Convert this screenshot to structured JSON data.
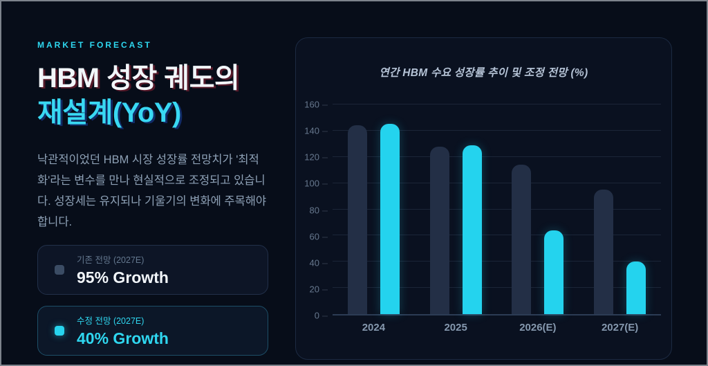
{
  "header": {
    "eyebrow": "MARKET FORECAST",
    "title_line1": "HBM 성장 궤도의",
    "title_line2": "재설계(YoY)",
    "description": "낙관적이었던 HBM 시장 성장률 전망치가 '최적화'라는 변수를 만나 현실적으로 조정되고 있습니다. 성장세는 유지되나 기울기의 변화에 주목해야 합니다."
  },
  "cards": [
    {
      "label": "기존 전망 (2027E)",
      "value": "95% Growth",
      "icon": "legend-square-muted",
      "color": "#3b4c64"
    },
    {
      "label": "수정 전망 (2027E)",
      "value": "40% Growth",
      "icon": "legend-square-accent",
      "color": "#27d4ee"
    }
  ],
  "colors": {
    "accent_cyan": "#27d4ee",
    "muted_bar": "#232f46",
    "page_background": "#070d19",
    "panel_background": "#0a1120",
    "title_white": "#f2f6fa"
  },
  "chart_data": {
    "type": "bar",
    "title": "연간 HBM 수요 성장률 추이 및 조정 전망 (%)",
    "categories": [
      "2024",
      "2025",
      "2026(E)",
      "2027(E)"
    ],
    "series": [
      {
        "key": "original",
        "name": "기존 전망",
        "color": "#232f46",
        "values": [
          144,
          128,
          114,
          95
        ]
      },
      {
        "key": "revised",
        "name": "수정 전망",
        "color": "#24d3ee",
        "glow": "rgba(36,211,238,0.25)",
        "values": [
          145,
          129,
          64,
          40
        ]
      }
    ],
    "xlabel": "",
    "ylabel": "",
    "ylim": [
      0,
      160
    ],
    "yticks": [
      0,
      20,
      40,
      60,
      80,
      100,
      120,
      140,
      160
    ],
    "grid": true,
    "legend_position": "none"
  }
}
